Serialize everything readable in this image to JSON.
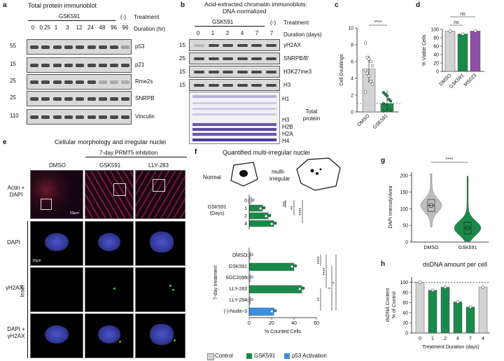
{
  "panel_a": {
    "letter": "a",
    "title": "Total protein immunoblot",
    "group_label": "GSK591",
    "neg_label": "(-)",
    "treatment_label": "Treatment",
    "duration_label": "Duration (hr)",
    "durations": [
      "0",
      "0.25",
      "1",
      "3",
      "12",
      "24",
      "48",
      "96",
      "96"
    ],
    "rows": [
      {
        "marker": "55",
        "name": "p53"
      },
      {
        "marker": "15",
        "name": "p21"
      },
      {
        "marker": "25",
        "name": "Rme2s"
      },
      {
        "marker": "25",
        "name": "SNRPB"
      },
      {
        "marker": "110",
        "name": "Vinculin"
      }
    ]
  },
  "panel_b": {
    "letter": "b",
    "title_line1": "Acid-extracted chromatin immunoblots:",
    "title_line2": "DNA-normalized",
    "group_label": "GSK591",
    "neg_label": "(-)",
    "treatment_label": "Treatment",
    "duration_label": "Duration (days)",
    "durations": [
      "0",
      "1",
      "2",
      "4",
      "7",
      "7"
    ],
    "rows": [
      {
        "marker": "15",
        "name": "γH2AX"
      },
      {
        "marker": "25",
        "name": "SNRPB/B'"
      },
      {
        "marker": "15",
        "name": "H3K27me3"
      },
      {
        "marker": "15",
        "name": "H3"
      }
    ],
    "gel_labels": [
      "H1",
      "H3",
      "H2B",
      "H2A",
      "H4"
    ],
    "total_protein_label": "Total protein"
  },
  "panel_c": {
    "letter": "c",
    "ylabel": "Cell Doublings",
    "sig": "****",
    "categories": [
      "DMSO",
      "GSK591"
    ],
    "ticks": [
      "0",
      "2",
      "4",
      "6",
      "8",
      "10"
    ]
  },
  "panel_d": {
    "letter": "d",
    "ylabel": "% Viable Cells",
    "sig": [
      "ns",
      "ns"
    ],
    "categories": [
      "DMSO",
      "GSK591",
      "MS023"
    ],
    "ticks": [
      "0",
      "20",
      "40",
      "60",
      "80",
      "100"
    ]
  },
  "panel_e": {
    "letter": "e",
    "title": "Cellular morphology and irregular nuclei",
    "subtitle": "7-day PRMT5 inhibition",
    "columns": [
      "DMSO",
      "GSK591",
      "LLY-283"
    ],
    "rows": [
      "Actin + DAPI",
      "DAPI",
      "γH2AX",
      "DAPI + γH2AX"
    ],
    "inset_label": "Inset",
    "scale_top": "50μm",
    "scale_inset": "10μm"
  },
  "panel_f": {
    "letter": "f",
    "title": "Quantified multi-irregular nuclei",
    "normal_label": "Normal",
    "multi_label_1": "multi-",
    "multi_label_2": "irregular",
    "scale": "10 μm",
    "top_group_label_1": "GSK591",
    "top_group_label_2": "(Days)",
    "bottom_group_label": "7-day treatment",
    "xlabel": "% Counted Cells",
    "xticks": [
      "0",
      "20",
      "40",
      "60"
    ],
    "sig_top": [
      "ns",
      "**",
      "****"
    ],
    "sig_bottom": [
      "****",
      "****",
      "**",
      "*",
      "*"
    ],
    "legend": [
      "Control",
      "GSK591",
      "p53 Activation"
    ]
  },
  "panel_g": {
    "letter": "g",
    "ylabel": "DAPI Intensity/Area",
    "sig": "****",
    "categories": [
      "DMSO",
      "GSK591"
    ],
    "ticks": [
      "0",
      "50",
      "100",
      "150",
      "200"
    ]
  },
  "panel_h": {
    "letter": "h",
    "title": "dsDNA amount per cell",
    "ylabel_1": "dsDNA Content",
    "ylabel_2": "% of Control",
    "xlabel": "Treatment Duration (days)",
    "ticks": [
      "0",
      "20",
      "40",
      "60",
      "80",
      "100"
    ]
  },
  "colors": {
    "control": "#d3d3d3",
    "gsk591": "#1a8a4a",
    "p53": "#3b8fe0",
    "ms023": "#8e4fa8",
    "viol_gray": "#bdbdbd",
    "viol_green": "#1a8a4a"
  },
  "chart_data": [
    {
      "panel": "c",
      "type": "bar",
      "categories": [
        "DMSO",
        "GSK591"
      ],
      "values": [
        5.1,
        1.0
      ],
      "ylim": [
        0,
        10
      ],
      "ylabel": "Cell Doublings",
      "title": "",
      "points": [
        [
          8.2,
          6.5,
          6.3,
          6.0,
          5.5,
          5.0,
          4.6,
          4.3,
          3.6,
          3.3,
          2.4
        ],
        [
          2.3,
          2.1,
          1.9,
          1.5,
          1.3,
          1.0,
          0.8,
          0.6,
          0.4,
          0.2,
          0.1
        ]
      ],
      "reference_line": 1
    },
    {
      "panel": "d",
      "type": "bar",
      "categories": [
        "DMSO",
        "GSK591",
        "MS023"
      ],
      "values": [
        96,
        89,
        96
      ],
      "ylim": [
        0,
        100
      ],
      "ylabel": "% Viable Cells",
      "title": ""
    },
    {
      "panel": "f",
      "type": "bar",
      "orientation": "horizontal",
      "categories": [
        "0",
        "1",
        "2",
        "4",
        "DMSO",
        "GSK591",
        "SGC2096",
        "LLY-283",
        "LLY-284",
        "(-)-Nutlin-3"
      ],
      "values": [
        2,
        12,
        17,
        22,
        1,
        40,
        1,
        47,
        1,
        22
      ],
      "series_color": [
        "control",
        "gsk591",
        "gsk591",
        "gsk591",
        "control",
        "gsk591",
        "control",
        "gsk591",
        "control",
        "p53"
      ],
      "xlim": [
        0,
        60
      ],
      "xlabel": "% Counted Cells",
      "title": "Quantified multi-irregular nuclei"
    },
    {
      "panel": "g",
      "type": "violin",
      "categories": [
        "DMSO",
        "GSK591"
      ],
      "median": [
        110,
        42
      ],
      "ylim": [
        0,
        210
      ],
      "ylabel": "DAPI Intensity/Area",
      "title": ""
    },
    {
      "panel": "h",
      "type": "bar",
      "categories": [
        "0",
        "1",
        "2",
        "4",
        "7",
        "4"
      ],
      "values": [
        100,
        84,
        90,
        61,
        51,
        90
      ],
      "colors": [
        "control",
        "gsk591",
        "gsk591",
        "gsk591",
        "gsk591",
        "control"
      ],
      "ylim": [
        0,
        110
      ],
      "reference_line": 100,
      "xlabel": "Treatment Duration (days)",
      "ylabel": "dsDNA Content % of Control",
      "title": "dsDNA amount per cell"
    }
  ]
}
